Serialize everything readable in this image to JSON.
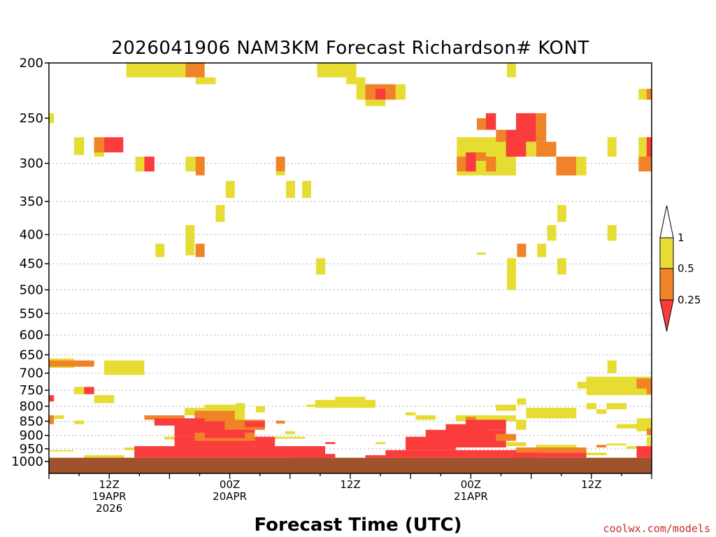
{
  "chart_data": {
    "type": "heatmap",
    "title": "2026041906 NAM3KM Forecast Richardson# KONT",
    "xlabel": "Forecast Time (UTC)",
    "ylabel": "",
    "credit": "coolwx.com/models",
    "x_unit": "forecast hour from 2026-04-19 06Z",
    "xlim": [
      0,
      60
    ],
    "y_unit": "hPa",
    "ylim": [
      1000,
      200
    ],
    "y_scale": "log",
    "y_ticks": [
      200,
      250,
      300,
      350,
      400,
      450,
      500,
      550,
      600,
      650,
      700,
      750,
      800,
      850,
      900,
      950,
      1000
    ],
    "grid": "dotted horizontal lines at 300-1000 hPa ticks",
    "x_ticks": [
      {
        "x": 6,
        "lines": [
          "12Z",
          "19APR",
          "2026"
        ]
      },
      {
        "x": 18,
        "lines": [
          "00Z",
          "20APR"
        ]
      },
      {
        "x": 30,
        "lines": [
          "12Z"
        ]
      },
      {
        "x": 42,
        "lines": [
          "00Z",
          "21APR"
        ]
      },
      {
        "x": 54,
        "lines": [
          "12Z"
        ]
      }
    ],
    "legend": {
      "placement": "right",
      "labels": [
        "1",
        "0.5",
        "0.25"
      ],
      "bins": [
        {
          "range": "0.5-1",
          "color": "#e6dc32"
        },
        {
          "range": "0.25-0.5",
          "color": "#f08228"
        },
        {
          "range": "<0.25",
          "color": "#fa3c3c"
        }
      ]
    },
    "ground": {
      "color": "#a0522d",
      "from_hpa": 1013,
      "to_hpa": 985
    },
    "cells": [
      {
        "x0": 7.7,
        "x1": 13.6,
        "p0": 200,
        "p1": 212,
        "c": "y"
      },
      {
        "x0": 13.6,
        "x1": 15.5,
        "p0": 200,
        "p1": 212,
        "c": "o"
      },
      {
        "x0": 14.6,
        "x1": 16.6,
        "p0": 212,
        "p1": 218,
        "c": "y"
      },
      {
        "x0": 26.7,
        "x1": 30.6,
        "p0": 200,
        "p1": 212,
        "c": "y"
      },
      {
        "x0": 29.6,
        "x1": 31.5,
        "p0": 212,
        "p1": 218,
        "c": "y"
      },
      {
        "x0": 30.6,
        "x1": 35.5,
        "p0": 218,
        "p1": 232,
        "c": "y"
      },
      {
        "x0": 31.5,
        "x1": 34.5,
        "p0": 218,
        "p1": 232,
        "c": "o"
      },
      {
        "x0": 32.5,
        "x1": 33.5,
        "p0": 222,
        "p1": 232,
        "c": "r"
      },
      {
        "x0": 31.5,
        "x1": 33.5,
        "p0": 232,
        "p1": 238,
        "c": "y"
      },
      {
        "x0": 45.6,
        "x1": 46.5,
        "p0": 200,
        "p1": 212,
        "c": "y"
      },
      {
        "x0": 58.7,
        "x1": 60,
        "p0": 222,
        "p1": 232,
        "c": "y"
      },
      {
        "x0": 59.5,
        "x1": 60,
        "p0": 222,
        "p1": 232,
        "c": "o"
      },
      {
        "x0": 0,
        "x1": 0.5,
        "p0": 245,
        "p1": 255,
        "c": "y"
      },
      {
        "x0": 2.5,
        "x1": 3.5,
        "p0": 270,
        "p1": 290,
        "c": "y"
      },
      {
        "x0": 4.5,
        "x1": 5.5,
        "p0": 270,
        "p1": 292,
        "c": "y"
      },
      {
        "x0": 4.5,
        "x1": 5.5,
        "p0": 270,
        "p1": 287,
        "c": "o"
      },
      {
        "x0": 5.5,
        "x1": 7.4,
        "p0": 270,
        "p1": 287,
        "c": "r"
      },
      {
        "x0": 8.6,
        "x1": 10.5,
        "p0": 292,
        "p1": 310,
        "c": "y"
      },
      {
        "x0": 9.5,
        "x1": 10.5,
        "p0": 292,
        "p1": 310,
        "c": "r"
      },
      {
        "x0": 13.6,
        "x1": 15.5,
        "p0": 292,
        "p1": 310,
        "c": "y"
      },
      {
        "x0": 14.6,
        "x1": 15.5,
        "p0": 292,
        "p1": 315,
        "c": "o"
      },
      {
        "x0": 22.6,
        "x1": 23.5,
        "p0": 292,
        "p1": 310,
        "c": "o"
      },
      {
        "x0": 22.6,
        "x1": 23.5,
        "p0": 310,
        "p1": 315,
        "c": "y"
      },
      {
        "x0": 40.6,
        "x1": 46.5,
        "p0": 270,
        "p1": 315,
        "c": "y"
      },
      {
        "x0": 40.6,
        "x1": 42.5,
        "p0": 292,
        "p1": 310,
        "c": "o"
      },
      {
        "x0": 41.5,
        "x1": 42.5,
        "p0": 287,
        "p1": 310,
        "c": "r"
      },
      {
        "x0": 43.5,
        "x1": 44.5,
        "p0": 292,
        "p1": 310,
        "c": "o"
      },
      {
        "x0": 42.5,
        "x1": 43.5,
        "p0": 287,
        "p1": 297,
        "c": "o"
      },
      {
        "x0": 42.6,
        "x1": 43.5,
        "p0": 250,
        "p1": 262,
        "c": "o"
      },
      {
        "x0": 43.5,
        "x1": 44.5,
        "p0": 245,
        "p1": 262,
        "c": "r"
      },
      {
        "x0": 44.5,
        "x1": 45.5,
        "p0": 262,
        "p1": 275,
        "c": "o"
      },
      {
        "x0": 45.5,
        "x1": 47.5,
        "p0": 262,
        "p1": 292,
        "c": "r"
      },
      {
        "x0": 46.5,
        "x1": 48.5,
        "p0": 245,
        "p1": 275,
        "c": "r"
      },
      {
        "x0": 47.5,
        "x1": 48.5,
        "p0": 275,
        "p1": 292,
        "c": "y"
      },
      {
        "x0": 48.5,
        "x1": 49.5,
        "p0": 245,
        "p1": 275,
        "c": "o"
      },
      {
        "x0": 48.5,
        "x1": 50.5,
        "p0": 275,
        "p1": 292,
        "c": "o"
      },
      {
        "x0": 50.5,
        "x1": 52.5,
        "p0": 292,
        "p1": 315,
        "c": "o"
      },
      {
        "x0": 52.5,
        "x1": 53.5,
        "p0": 292,
        "p1": 315,
        "c": "y"
      },
      {
        "x0": 55.6,
        "x1": 56.5,
        "p0": 270,
        "p1": 292,
        "c": "y"
      },
      {
        "x0": 58.7,
        "x1": 60,
        "p0": 270,
        "p1": 292,
        "c": "y"
      },
      {
        "x0": 59.5,
        "x1": 60,
        "p0": 270,
        "p1": 292,
        "c": "r"
      },
      {
        "x0": 58.7,
        "x1": 60,
        "p0": 292,
        "p1": 310,
        "c": "o"
      },
      {
        "x0": 17.6,
        "x1": 18.5,
        "p0": 322,
        "p1": 345,
        "c": "y"
      },
      {
        "x0": 16.6,
        "x1": 17.5,
        "p0": 355,
        "p1": 380,
        "c": "y"
      },
      {
        "x0": 23.6,
        "x1": 24.5,
        "p0": 322,
        "p1": 345,
        "c": "y"
      },
      {
        "x0": 25.2,
        "x1": 26.1,
        "p0": 322,
        "p1": 345,
        "c": "y"
      },
      {
        "x0": 50.6,
        "x1": 51.5,
        "p0": 355,
        "p1": 380,
        "c": "y"
      },
      {
        "x0": 49.6,
        "x1": 50.5,
        "p0": 385,
        "p1": 410,
        "c": "y"
      },
      {
        "x0": 55.6,
        "x1": 56.5,
        "p0": 385,
        "p1": 410,
        "c": "y"
      },
      {
        "x0": 13.6,
        "x1": 14.5,
        "p0": 385,
        "p1": 435,
        "c": "y"
      },
      {
        "x0": 14.6,
        "x1": 15.5,
        "p0": 415,
        "p1": 438,
        "c": "o"
      },
      {
        "x0": 10.6,
        "x1": 11.5,
        "p0": 415,
        "p1": 438,
        "c": "y"
      },
      {
        "x0": 46.6,
        "x1": 47.5,
        "p0": 415,
        "p1": 438,
        "c": "o"
      },
      {
        "x0": 48.6,
        "x1": 49.5,
        "p0": 415,
        "p1": 438,
        "c": "y"
      },
      {
        "x0": 42.6,
        "x1": 43.5,
        "p0": 430,
        "p1": 434,
        "c": "y"
      },
      {
        "x0": 26.6,
        "x1": 27.5,
        "p0": 440,
        "p1": 470,
        "c": "y"
      },
      {
        "x0": 45.6,
        "x1": 46.5,
        "p0": 440,
        "p1": 500,
        "c": "y"
      },
      {
        "x0": 50.6,
        "x1": 51.5,
        "p0": 440,
        "p1": 470,
        "c": "y"
      },
      {
        "x0": 0,
        "x1": 2.5,
        "p0": 660,
        "p1": 685,
        "c": "y"
      },
      {
        "x0": 0,
        "x1": 4.5,
        "p0": 665,
        "p1": 682,
        "c": "o"
      },
      {
        "x0": 5.5,
        "x1": 9.5,
        "p0": 665,
        "p1": 705,
        "c": "y"
      },
      {
        "x0": 2.5,
        "x1": 3.5,
        "p0": 740,
        "p1": 762,
        "c": "y"
      },
      {
        "x0": 3.5,
        "x1": 4.5,
        "p0": 740,
        "p1": 762,
        "c": "r"
      },
      {
        "x0": 4.5,
        "x1": 6.5,
        "p0": 765,
        "p1": 790,
        "c": "y"
      },
      {
        "x0": 0,
        "x1": 0.5,
        "p0": 765,
        "p1": 785,
        "c": "r"
      },
      {
        "x0": 53.5,
        "x1": 60,
        "p0": 710,
        "p1": 765,
        "c": "y"
      },
      {
        "x0": 58.5,
        "x1": 60,
        "p0": 715,
        "p1": 745,
        "c": "o"
      },
      {
        "x0": 58.5,
        "x1": 60,
        "p0": 745,
        "p1": 762,
        "c": "y"
      },
      {
        "x0": 59.5,
        "x1": 60,
        "p0": 730,
        "p1": 762,
        "c": "o"
      },
      {
        "x0": 55.6,
        "x1": 56.5,
        "p0": 665,
        "p1": 700,
        "c": "y"
      },
      {
        "x0": 52.6,
        "x1": 53.5,
        "p0": 725,
        "p1": 745,
        "c": "y"
      },
      {
        "x0": 26.5,
        "x1": 32.5,
        "p0": 780,
        "p1": 805,
        "c": "y"
      },
      {
        "x0": 28.5,
        "x1": 31.5,
        "p0": 770,
        "p1": 790,
        "c": "y"
      },
      {
        "x0": 25.6,
        "x1": 26.5,
        "p0": 795,
        "p1": 802,
        "c": "y"
      },
      {
        "x0": 13.5,
        "x1": 15.5,
        "p0": 805,
        "p1": 830,
        "c": "y"
      },
      {
        "x0": 15.5,
        "x1": 19.5,
        "p0": 795,
        "p1": 855,
        "c": "y"
      },
      {
        "x0": 14.5,
        "x1": 18.5,
        "p0": 815,
        "p1": 850,
        "c": "o"
      },
      {
        "x0": 18.6,
        "x1": 19.5,
        "p0": 790,
        "p1": 810,
        "c": "y"
      },
      {
        "x0": 20.6,
        "x1": 21.5,
        "p0": 800,
        "p1": 820,
        "c": "y"
      },
      {
        "x0": 9.5,
        "x1": 13.5,
        "p0": 830,
        "p1": 845,
        "c": "o"
      },
      {
        "x0": 10.5,
        "x1": 15.5,
        "p0": 840,
        "p1": 865,
        "c": "r"
      },
      {
        "x0": 12.5,
        "x1": 20.5,
        "p0": 850,
        "p1": 905,
        "c": "r"
      },
      {
        "x0": 17.5,
        "x1": 21.5,
        "p0": 845,
        "p1": 880,
        "c": "o"
      },
      {
        "x0": 19.5,
        "x1": 21.5,
        "p0": 850,
        "p1": 870,
        "c": "r"
      },
      {
        "x0": 40.5,
        "x1": 46.5,
        "p0": 830,
        "p1": 850,
        "c": "y"
      },
      {
        "x0": 41.5,
        "x1": 42.5,
        "p0": 835,
        "p1": 860,
        "c": "o"
      },
      {
        "x0": 41.5,
        "x1": 45.5,
        "p0": 845,
        "p1": 880,
        "c": "r"
      },
      {
        "x0": 43.5,
        "x1": 45.5,
        "p0": 850,
        "p1": 870,
        "c": "r"
      },
      {
        "x0": 46.5,
        "x1": 47.5,
        "p0": 845,
        "p1": 880,
        "c": "y"
      },
      {
        "x0": 44.5,
        "x1": 46.5,
        "p0": 795,
        "p1": 815,
        "c": "y"
      },
      {
        "x0": 46.6,
        "x1": 47.5,
        "p0": 775,
        "p1": 795,
        "c": "y"
      },
      {
        "x0": 47.5,
        "x1": 52.5,
        "p0": 805,
        "p1": 840,
        "c": "y"
      },
      {
        "x0": 49.5,
        "x1": 51.5,
        "p0": 820,
        "p1": 840,
        "c": "y"
      },
      {
        "x0": 53.5,
        "x1": 54.5,
        "p0": 790,
        "p1": 810,
        "c": "y"
      },
      {
        "x0": 54.5,
        "x1": 55.5,
        "p0": 810,
        "p1": 825,
        "c": "y"
      },
      {
        "x0": 55.5,
        "x1": 57.5,
        "p0": 790,
        "p1": 810,
        "c": "y"
      },
      {
        "x0": 56.5,
        "x1": 59.5,
        "p0": 860,
        "p1": 875,
        "c": "y"
      },
      {
        "x0": 58.5,
        "x1": 60,
        "p0": 840,
        "p1": 885,
        "c": "y"
      },
      {
        "x0": 59.5,
        "x1": 60,
        "p0": 875,
        "p1": 900,
        "c": "o"
      },
      {
        "x0": 36.5,
        "x1": 38.5,
        "p0": 830,
        "p1": 845,
        "c": "y"
      },
      {
        "x0": 35.5,
        "x1": 36.5,
        "p0": 820,
        "p1": 830,
        "c": "y"
      },
      {
        "x0": 0,
        "x1": 0.5,
        "p0": 830,
        "p1": 860,
        "c": "o"
      },
      {
        "x0": 0.5,
        "x1": 1.5,
        "p0": 830,
        "p1": 842,
        "c": "y"
      },
      {
        "x0": 2.5,
        "x1": 3.5,
        "p0": 848,
        "p1": 860,
        "c": "y"
      },
      {
        "x0": 22.6,
        "x1": 23.5,
        "p0": 848,
        "p1": 858,
        "c": "o"
      },
      {
        "x0": 23.5,
        "x1": 24.5,
        "p0": 885,
        "p1": 895,
        "c": "y"
      },
      {
        "x0": 24.5,
        "x1": 25.5,
        "p0": 905,
        "p1": 912,
        "c": "y"
      },
      {
        "x0": 20.5,
        "x1": 24.5,
        "p0": 905,
        "p1": 912,
        "c": "y"
      },
      {
        "x0": 11.5,
        "x1": 14.5,
        "p0": 905,
        "p1": 915,
        "c": "y"
      },
      {
        "x0": 7.5,
        "x1": 9.5,
        "p0": 945,
        "p1": 955,
        "c": "y"
      },
      {
        "x0": 12.5,
        "x1": 22.5,
        "p0": 905,
        "p1": 940,
        "c": "r"
      },
      {
        "x0": 14.5,
        "x1": 20.5,
        "p0": 890,
        "p1": 920,
        "c": "o"
      },
      {
        "x0": 15.5,
        "x1": 19.5,
        "p0": 880,
        "p1": 910,
        "c": "r"
      },
      {
        "x0": 8.5,
        "x1": 27.5,
        "p0": 940,
        "p1": 985,
        "c": "r"
      },
      {
        "x0": 26.5,
        "x1": 27.5,
        "p0": 975,
        "p1": 985,
        "c": "r"
      },
      {
        "x0": 33.5,
        "x1": 48.5,
        "p0": 955,
        "p1": 985,
        "c": "r"
      },
      {
        "x0": 35.5,
        "x1": 40.5,
        "p0": 905,
        "p1": 955,
        "c": "r"
      },
      {
        "x0": 37.5,
        "x1": 45.5,
        "p0": 880,
        "p1": 945,
        "c": "r"
      },
      {
        "x0": 39.5,
        "x1": 43.5,
        "p0": 860,
        "p1": 910,
        "c": "r"
      },
      {
        "x0": 44.5,
        "x1": 46.5,
        "p0": 895,
        "p1": 920,
        "c": "o"
      },
      {
        "x0": 46.5,
        "x1": 53.5,
        "p0": 945,
        "p1": 965,
        "c": "o"
      },
      {
        "x0": 46.5,
        "x1": 53.5,
        "p0": 965,
        "p1": 985,
        "c": "r"
      },
      {
        "x0": 45.5,
        "x1": 47.5,
        "p0": 925,
        "p1": 940,
        "c": "y"
      },
      {
        "x0": 48.5,
        "x1": 52.5,
        "p0": 935,
        "p1": 945,
        "c": "y"
      },
      {
        "x0": 53.5,
        "x1": 55.5,
        "p0": 965,
        "p1": 975,
        "c": "y"
      },
      {
        "x0": 54.5,
        "x1": 55.5,
        "p0": 935,
        "p1": 945,
        "c": "o"
      },
      {
        "x0": 55.5,
        "x1": 57.5,
        "p0": 930,
        "p1": 937,
        "c": "y"
      },
      {
        "x0": 57.5,
        "x1": 58.5,
        "p0": 940,
        "p1": 950,
        "c": "y"
      },
      {
        "x0": 58.5,
        "x1": 60,
        "p0": 940,
        "p1": 985,
        "c": "r"
      },
      {
        "x0": 59.5,
        "x1": 60,
        "p0": 905,
        "p1": 940,
        "c": "y"
      },
      {
        "x0": 0,
        "x1": 2.5,
        "p0": 955,
        "p1": 960,
        "c": "y"
      },
      {
        "x0": 27.5,
        "x1": 28.5,
        "p0": 925,
        "p1": 932,
        "c": "r"
      },
      {
        "x0": 32.5,
        "x1": 33.5,
        "p0": 925,
        "p1": 932,
        "c": "y"
      },
      {
        "x0": 3.5,
        "x1": 7.5,
        "p0": 975,
        "p1": 985,
        "c": "y"
      },
      {
        "x0": 24.5,
        "x1": 28.5,
        "p0": 970,
        "p1": 985,
        "c": "r"
      },
      {
        "x0": 31.5,
        "x1": 33.5,
        "p0": 975,
        "p1": 985,
        "c": "r"
      }
    ]
  }
}
